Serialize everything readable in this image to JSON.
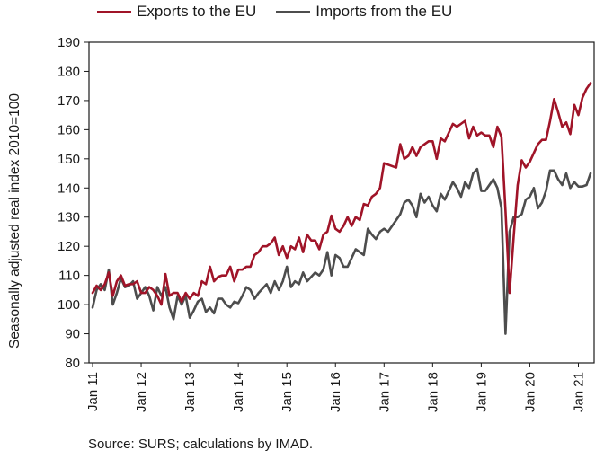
{
  "legend": {
    "exports_label": "Exports to the EU",
    "imports_label": "Imports from the EU"
  },
  "source_note": "Source: SURS; calculations by IMAD.",
  "colors": {
    "exports": "#a01428",
    "imports": "#4d4d4d",
    "frame": "#1a1a1a"
  },
  "chart_data": {
    "type": "line",
    "ylabel": "Seasonally adjusted real index 2010=100",
    "xlabel": "",
    "ylim": [
      80,
      190
    ],
    "yticks": [
      80,
      90,
      100,
      110,
      120,
      130,
      140,
      150,
      160,
      170,
      180,
      190
    ],
    "xlim": [
      "Jan 11",
      "Dec 21"
    ],
    "xtick_labels": [
      "Jan 11",
      "Jan 12",
      "Jan 13",
      "Jan 14",
      "Jan 15",
      "Jan 16",
      "Jan 17",
      "Jan 18",
      "Jan 19",
      "Jan 20",
      "Jan 21"
    ],
    "grid": false,
    "legend_position": "top",
    "series": [
      {
        "name": "Exports to the EU",
        "values": [
          104,
          106.5,
          105,
          107,
          111,
          103,
          108,
          110,
          106.5,
          107,
          107,
          108,
          104,
          104,
          106,
          105,
          103,
          100,
          110.5,
          103,
          104,
          104,
          101,
          104,
          102,
          104,
          103,
          108,
          107,
          113,
          108,
          109.5,
          110,
          110,
          113,
          108,
          112,
          112,
          113,
          113,
          117,
          118,
          120,
          120,
          121,
          123,
          117,
          120,
          116,
          120,
          119,
          123,
          118,
          124,
          122,
          122,
          119,
          124,
          125,
          130.5,
          126,
          125,
          127,
          130,
          127,
          130,
          129,
          134.5,
          134,
          137,
          138,
          140,
          148.5,
          148,
          147.5,
          147,
          155,
          150,
          151,
          154,
          151,
          154,
          155,
          156,
          156,
          150,
          157,
          156,
          159,
          162,
          161,
          162,
          163,
          157,
          161,
          158,
          159,
          158,
          158,
          154,
          161,
          157.5,
          132,
          104,
          123,
          141,
          149.5,
          147,
          149,
          152,
          155,
          156.5,
          156.5,
          163,
          170.5,
          166,
          161,
          162.5,
          158.5,
          168.5,
          165,
          171,
          174,
          176
        ]
      },
      {
        "name": "Imports from the EU",
        "values": [
          99,
          105,
          107,
          105,
          112,
          100,
          104,
          109,
          106,
          106.5,
          108,
          102,
          104,
          106,
          103,
          98,
          106,
          103,
          106,
          99,
          95,
          103,
          100,
          103,
          95.5,
          98,
          101,
          102,
          97.5,
          99,
          97,
          102,
          102,
          100,
          99,
          101,
          100.5,
          103,
          106,
          105,
          102,
          104,
          105.5,
          107,
          104,
          108,
          105,
          108,
          113,
          106,
          108,
          107,
          111,
          108,
          109.5,
          111,
          110,
          112,
          118,
          110,
          117,
          116,
          113,
          113,
          116,
          119,
          118,
          117,
          126,
          124,
          122.5,
          125,
          126,
          125,
          127,
          129,
          131,
          135,
          136,
          134,
          130,
          138,
          135,
          137,
          134,
          132,
          138,
          136,
          139,
          142,
          140,
          137,
          142,
          140,
          145,
          146.5,
          139,
          139,
          141,
          143,
          140,
          133,
          90,
          125,
          130,
          130,
          131,
          136,
          137,
          140,
          133,
          135,
          139,
          146,
          146,
          143,
          141,
          145,
          140,
          142,
          140.5,
          140.5,
          141,
          145
        ]
      }
    ]
  }
}
